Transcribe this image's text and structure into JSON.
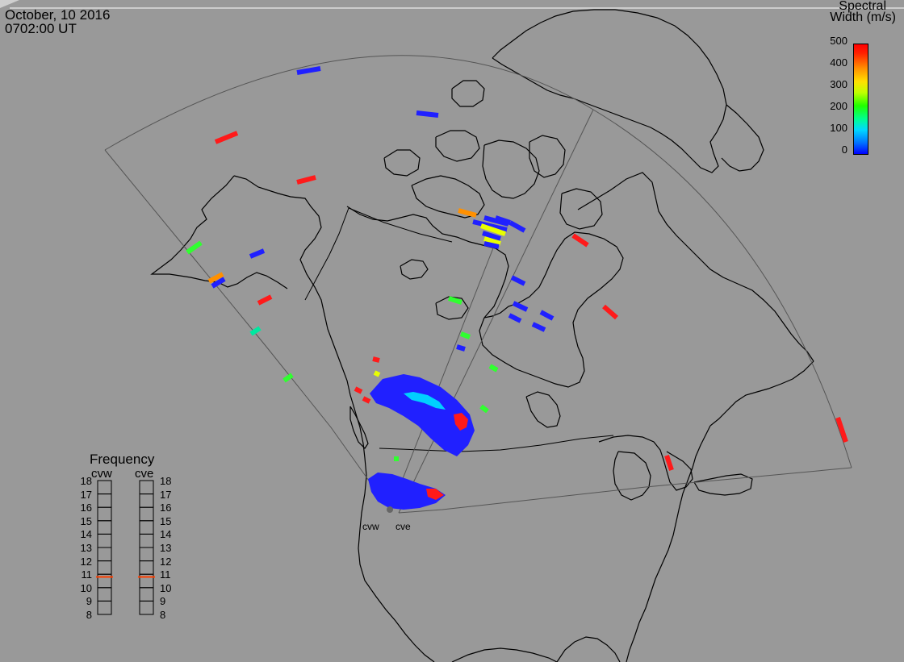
{
  "header": {
    "date": "October, 10 2016",
    "time": "0702:00 UT"
  },
  "colorbar": {
    "title_line1": "Spectral",
    "title_line2": "Width (m/s)",
    "ticks": [
      "500",
      "400",
      "300",
      "200",
      "100",
      "0"
    ],
    "range": [
      0,
      500
    ],
    "colors": [
      "#0000ff",
      "#00d8ff",
      "#20ff00",
      "#ffe000",
      "#ff9000",
      "#ff0000"
    ]
  },
  "frequency_panel": {
    "title": "Frequency",
    "radars": [
      {
        "name": "cvw",
        "frequency_mhz": 10.8
      },
      {
        "name": "cve",
        "frequency_mhz": 10.8
      }
    ],
    "scale_labels": [
      "18",
      "17",
      "16",
      "15",
      "14",
      "13",
      "12",
      "11",
      "10",
      "9",
      "8"
    ],
    "scale_range": [
      8,
      18
    ],
    "marker_color": "#ff4000"
  },
  "sites": [
    {
      "name": "cvw"
    },
    {
      "name": "cve"
    }
  ],
  "map": {
    "background": "#999999",
    "land_color": "#999999",
    "coast_color": "#000000",
    "fov_color": "#555555",
    "projection_note": "polar stereographic, North America",
    "quantity": "spectral width",
    "units": "m/s"
  }
}
